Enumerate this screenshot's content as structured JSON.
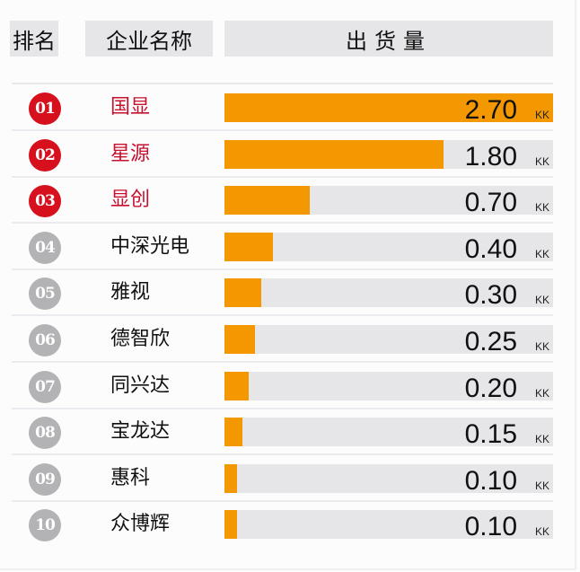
{
  "header": {
    "rank_label": "排名",
    "company_label": "企业名称",
    "shipment_label": "出货量"
  },
  "colors": {
    "bar_fill": "#f39800",
    "bar_track": "#e6e5e8",
    "top3_badge": "#d7101e",
    "top3_text": "#c8102e",
    "other_badge": "#b3b2b4",
    "other_text": "#111111"
  },
  "unit": "KK",
  "rows": [
    {
      "rank": "01",
      "company": "国显",
      "value": 2.7,
      "display": "2.70",
      "top": true
    },
    {
      "rank": "02",
      "company": "星源",
      "value": 1.8,
      "display": "1.80",
      "top": true
    },
    {
      "rank": "03",
      "company": "显创",
      "value": 0.7,
      "display": "0.70",
      "top": true
    },
    {
      "rank": "04",
      "company": "中深光电",
      "value": 0.4,
      "display": "0.40",
      "top": false
    },
    {
      "rank": "05",
      "company": "雅视",
      "value": 0.3,
      "display": "0.30",
      "top": false
    },
    {
      "rank": "06",
      "company": "德智欣",
      "value": 0.25,
      "display": "0.25",
      "top": false
    },
    {
      "rank": "07",
      "company": "同兴达",
      "value": 0.2,
      "display": "0.20",
      "top": false
    },
    {
      "rank": "08",
      "company": "宝龙达",
      "value": 0.15,
      "display": "0.15",
      "top": false
    },
    {
      "rank": "09",
      "company": "惠科",
      "value": 0.1,
      "display": "0.10",
      "top": false
    },
    {
      "rank": "10",
      "company": "众博辉",
      "value": 0.1,
      "display": "0.10",
      "top": false
    }
  ],
  "chart_data": {
    "type": "bar",
    "orientation": "horizontal",
    "title": "",
    "categories": [
      "国显",
      "星源",
      "显创",
      "中深光电",
      "雅视",
      "德智欣",
      "同兴达",
      "宝龙达",
      "惠科",
      "众博辉"
    ],
    "values": [
      2.7,
      1.8,
      0.7,
      0.4,
      0.3,
      0.25,
      0.2,
      0.15,
      0.1,
      0.1
    ],
    "ranks": [
      "01",
      "02",
      "03",
      "04",
      "05",
      "06",
      "07",
      "08",
      "09",
      "10"
    ],
    "xlabel": "出货量",
    "ylabel": "企业名称",
    "unit": "KK",
    "xlim": [
      0,
      2.7
    ],
    "grid": false,
    "legend": null,
    "column_headers": [
      "排名",
      "企业名称",
      "出货量"
    ]
  }
}
